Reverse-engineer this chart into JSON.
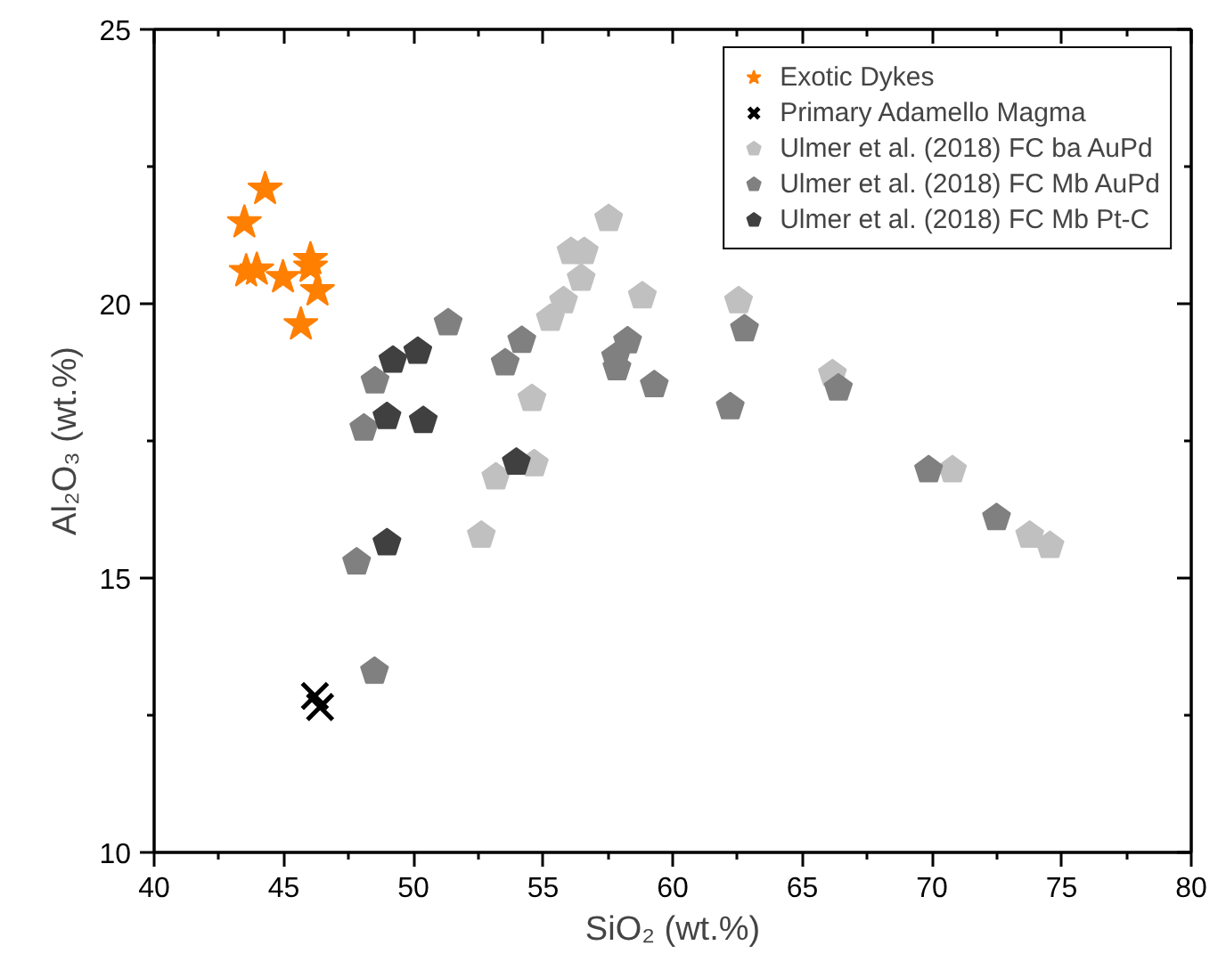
{
  "chart_data": {
    "type": "scatter",
    "xlabel": "SiO₂ (wt.%)",
    "ylabel": "Al₂O₃ (wt.%)",
    "xlim": [
      40,
      80
    ],
    "ylim": [
      10,
      25
    ],
    "xticks": [
      40,
      45,
      50,
      55,
      60,
      65,
      70,
      75,
      80
    ],
    "yticks": [
      10,
      15,
      20,
      25
    ],
    "grid": false,
    "legend": "top right",
    "series": [
      {
        "name": "Exotic Dykes",
        "color": "#ff7f00",
        "marker": "star",
        "x": [
          44.28,
          43.48,
          43.55,
          43.96,
          44.97,
          46.03,
          46.03,
          46.3,
          45.66
        ],
        "values": [
          22.09,
          21.48,
          20.59,
          20.62,
          20.48,
          20.81,
          20.67,
          20.24,
          19.62
        ]
      },
      {
        "name": "Primary Adamello Magma",
        "color": "#000000",
        "marker": "cross",
        "x": [
          46.2,
          46.4
        ],
        "values": [
          12.85,
          12.65
        ]
      },
      {
        "name": "Ulmer et al. (2018) FC ba AuPd",
        "color": "#c0c0c0",
        "x": [
          54.57,
          53.18,
          54.66,
          52.62,
          57.53,
          56.08,
          56.59,
          56.47,
          55.79,
          55.28,
          58.83,
          62.54,
          66.16,
          70.79,
          73.77,
          74.55
        ],
        "values": [
          18.27,
          16.84,
          17.08,
          15.78,
          21.55,
          20.95,
          20.95,
          20.46,
          20.05,
          19.73,
          20.14,
          20.05,
          18.72,
          16.97,
          15.78,
          15.59
        ]
      },
      {
        "name": "Ulmer et al. (2018) FC Mb AuPd",
        "color": "#808080",
        "x": [
          51.34,
          48.52,
          48.09,
          47.81,
          54.18,
          53.54,
          58.26,
          57.8,
          57.85,
          59.29,
          62.22,
          62.77,
          66.39,
          69.87,
          72.49,
          48.5
        ],
        "values": [
          19.65,
          18.59,
          17.73,
          15.29,
          19.33,
          18.92,
          19.32,
          19.03,
          18.83,
          18.52,
          18.12,
          19.54,
          18.46,
          16.97,
          16.1,
          13.3
        ]
      },
      {
        "name": "Ulmer et al. (2018) FC Mb Pt-C",
        "color": "#404040",
        "x": [
          49.21,
          50.17,
          48.98,
          50.38,
          53.97,
          48.98
        ],
        "values": [
          18.97,
          19.13,
          17.94,
          17.87,
          17.11,
          15.64
        ]
      }
    ]
  }
}
